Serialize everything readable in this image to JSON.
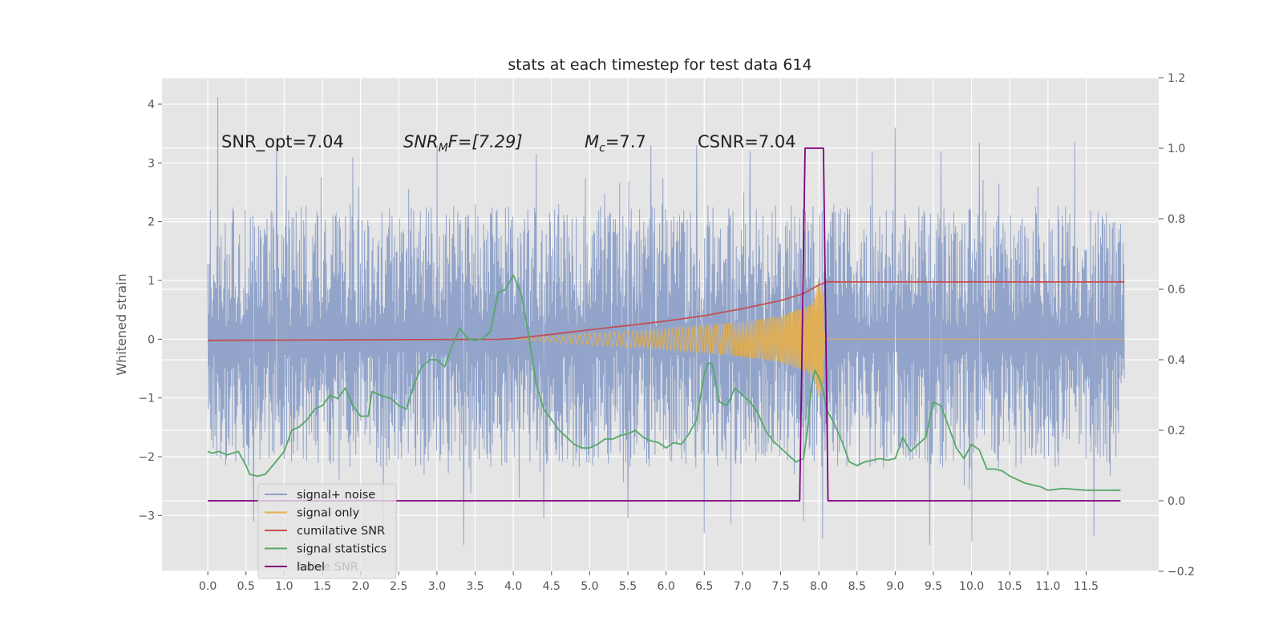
{
  "chart_data": {
    "type": "line",
    "title": "stats at each timestep for test data 614",
    "ylabel": "Whitened strain",
    "xlim": [
      -0.6,
      12.45
    ],
    "ylim": [
      -3.95,
      4.45
    ],
    "y2lim": [
      -0.2,
      1.2
    ],
    "x_ticks": [
      0.0,
      0.5,
      1.0,
      1.5,
      2.0,
      2.5,
      3.0,
      3.5,
      4.0,
      4.5,
      5.0,
      5.5,
      6.0,
      6.5,
      7.0,
      7.5,
      8.0,
      8.5,
      9.0,
      9.5,
      10.0,
      10.5,
      11.0,
      11.5
    ],
    "x_tick_labels": [
      "0.0",
      "0.5",
      "1.0",
      "1.5",
      "2.0",
      "2.5",
      "3.0",
      "3.5",
      "4.0",
      "4.5",
      "5.0",
      "5.5",
      "6.0",
      "6.5",
      "7.0",
      "7.5",
      "8.0",
      "8.5",
      "9.0",
      "9.5",
      "10.0",
      "10.5",
      "11.0",
      "11.5"
    ],
    "y_ticks": [
      -3,
      -2,
      -1,
      0,
      1,
      2,
      3,
      4
    ],
    "y_tick_labels": [
      "−3",
      "−2",
      "−1",
      "0",
      "1",
      "2",
      "3",
      "4"
    ],
    "y2_ticks": [
      -0.2,
      0.0,
      0.2,
      0.4,
      0.6,
      0.8,
      1.0,
      1.2
    ],
    "y2_tick_labels": [
      "−0.2",
      "0.0",
      "0.2",
      "0.4",
      "0.6",
      "0.8",
      "1.0",
      "1.2"
    ],
    "grid": true,
    "legend_position": "lower-left",
    "legend_occluded_text": "lative SNR",
    "annotations": {
      "snr_opt": "SNR_opt=7.04",
      "snr_mf_base": "SNR",
      "snr_mf_sub": "M",
      "snr_mf_rest": "F=[7.29]",
      "mc_base": "M",
      "mc_sub": "c",
      "mc_rest": "=7.7",
      "csnr": "CSNR=7.04"
    },
    "series": [
      {
        "name": "signal+ noise",
        "axis": "left",
        "color": "#8da0c8",
        "kind": "noise",
        "x_range": [
          0.0,
          12.0
        ],
        "band": [
          -2.2,
          2.3
        ],
        "peaks": [
          [
            0.13,
            4.12
          ],
          [
            0.9,
            3.3
          ],
          [
            3.0,
            3.3
          ],
          [
            5.8,
            3.3
          ],
          [
            6.4,
            3.3
          ],
          [
            7.1,
            3.2
          ],
          [
            8.7,
            3.2
          ],
          [
            9.6,
            3.2
          ],
          [
            10.1,
            3.35
          ],
          [
            11.35,
            3.35
          ],
          [
            1.9,
            3.1
          ],
          [
            4.3,
            3.15
          ],
          [
            9.0,
            3.6
          ],
          [
            2.3,
            -3.2
          ],
          [
            3.35,
            -3.5
          ],
          [
            6.5,
            -3.3
          ],
          [
            8.05,
            -3.4
          ],
          [
            9.45,
            -3.5
          ],
          [
            10.0,
            -3.45
          ],
          [
            11.6,
            -3.35
          ],
          [
            6.85,
            -3.15
          ],
          [
            4.4,
            -3.05
          ],
          [
            0.6,
            -3.1
          ],
          [
            5.5,
            -3.05
          ],
          [
            7.8,
            -3.1
          ]
        ]
      },
      {
        "name": "signal only",
        "axis": "left",
        "color": "#e8b04a",
        "kind": "chirp",
        "x_range": [
          4.0,
          8.1
        ],
        "amplitude": [
          [
            4.0,
            0.0
          ],
          [
            5.0,
            0.1
          ],
          [
            6.0,
            0.18
          ],
          [
            7.0,
            0.3
          ],
          [
            7.5,
            0.4
          ],
          [
            7.9,
            0.6
          ],
          [
            8.0,
            1.0
          ],
          [
            8.05,
            0.9
          ],
          [
            8.08,
            0.0
          ]
        ]
      },
      {
        "name": "cumilative SNR",
        "axis": "right",
        "color": "#c44e52",
        "x": [
          0.0,
          3.8,
          4.0,
          4.5,
          5.0,
          5.5,
          6.0,
          6.5,
          7.0,
          7.5,
          7.8,
          8.0,
          8.1,
          12.0
        ],
        "y": [
          0.455,
          0.458,
          0.46,
          0.472,
          0.485,
          0.497,
          0.51,
          0.525,
          0.545,
          0.568,
          0.588,
          0.612,
          0.621,
          0.621
        ]
      },
      {
        "name": "signal statistics",
        "axis": "right",
        "color": "#55a868",
        "x": [
          0.0,
          0.05,
          0.15,
          0.25,
          0.4,
          0.5,
          0.55,
          0.65,
          0.75,
          0.85,
          1.0,
          1.1,
          1.2,
          1.3,
          1.4,
          1.5,
          1.6,
          1.7,
          1.8,
          1.9,
          2.0,
          2.1,
          2.15,
          2.25,
          2.4,
          2.5,
          2.6,
          2.7,
          2.8,
          2.9,
          3.0,
          3.1,
          3.2,
          3.3,
          3.4,
          3.5,
          3.6,
          3.7,
          3.8,
          3.9,
          4.0,
          4.1,
          4.2,
          4.3,
          4.4,
          4.5,
          4.6,
          4.7,
          4.8,
          4.9,
          5.0,
          5.1,
          5.2,
          5.3,
          5.4,
          5.5,
          5.6,
          5.7,
          5.8,
          5.9,
          6.0,
          6.1,
          6.2,
          6.3,
          6.4,
          6.5,
          6.55,
          6.6,
          6.7,
          6.8,
          6.9,
          7.0,
          7.1,
          7.2,
          7.3,
          7.4,
          7.5,
          7.6,
          7.7,
          7.8,
          7.85,
          7.9,
          7.95,
          8.0,
          8.05,
          8.1,
          8.2,
          8.3,
          8.4,
          8.5,
          8.6,
          8.7,
          8.8,
          8.9,
          9.0,
          9.1,
          9.2,
          9.3,
          9.4,
          9.5,
          9.6,
          9.7,
          9.8,
          9.9,
          10.0,
          10.1,
          10.2,
          10.3,
          10.4,
          10.5,
          10.6,
          10.7,
          10.8,
          10.9,
          11.0,
          11.2,
          11.5,
          11.8,
          11.95
        ],
        "y": [
          0.14,
          0.135,
          0.14,
          0.13,
          0.14,
          0.1,
          0.075,
          0.07,
          0.075,
          0.1,
          0.14,
          0.2,
          0.21,
          0.23,
          0.26,
          0.27,
          0.3,
          0.29,
          0.32,
          0.27,
          0.24,
          0.24,
          0.31,
          0.3,
          0.29,
          0.27,
          0.26,
          0.33,
          0.38,
          0.4,
          0.4,
          0.38,
          0.44,
          0.49,
          0.46,
          0.455,
          0.46,
          0.48,
          0.59,
          0.6,
          0.64,
          0.59,
          0.47,
          0.33,
          0.26,
          0.23,
          0.2,
          0.18,
          0.16,
          0.15,
          0.15,
          0.16,
          0.175,
          0.175,
          0.185,
          0.19,
          0.2,
          0.18,
          0.17,
          0.165,
          0.15,
          0.165,
          0.16,
          0.19,
          0.23,
          0.36,
          0.39,
          0.39,
          0.28,
          0.27,
          0.32,
          0.3,
          0.28,
          0.25,
          0.2,
          0.17,
          0.15,
          0.13,
          0.11,
          0.12,
          0.2,
          0.32,
          0.37,
          0.35,
          0.32,
          0.26,
          0.22,
          0.17,
          0.11,
          0.1,
          0.11,
          0.115,
          0.12,
          0.115,
          0.12,
          0.18,
          0.14,
          0.16,
          0.18,
          0.28,
          0.27,
          0.21,
          0.15,
          0.12,
          0.16,
          0.145,
          0.09,
          0.09,
          0.085,
          0.07,
          0.06,
          0.05,
          0.045,
          0.04,
          0.03,
          0.035,
          0.03,
          0.03,
          0.03
        ]
      },
      {
        "name": "label",
        "axis": "right",
        "color": "#800080",
        "x": [
          0.0,
          7.75,
          7.82,
          8.06,
          8.12,
          11.95
        ],
        "y": [
          0.0,
          0.0,
          1.0,
          1.0,
          0.0,
          0.0
        ]
      }
    ]
  }
}
